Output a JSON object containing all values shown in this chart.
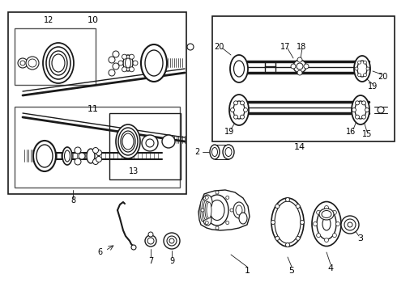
{
  "background_color": "#ffffff",
  "line_color": "#1a1a1a",
  "gray_color": "#555555",
  "light_gray": "#aaaaaa"
}
